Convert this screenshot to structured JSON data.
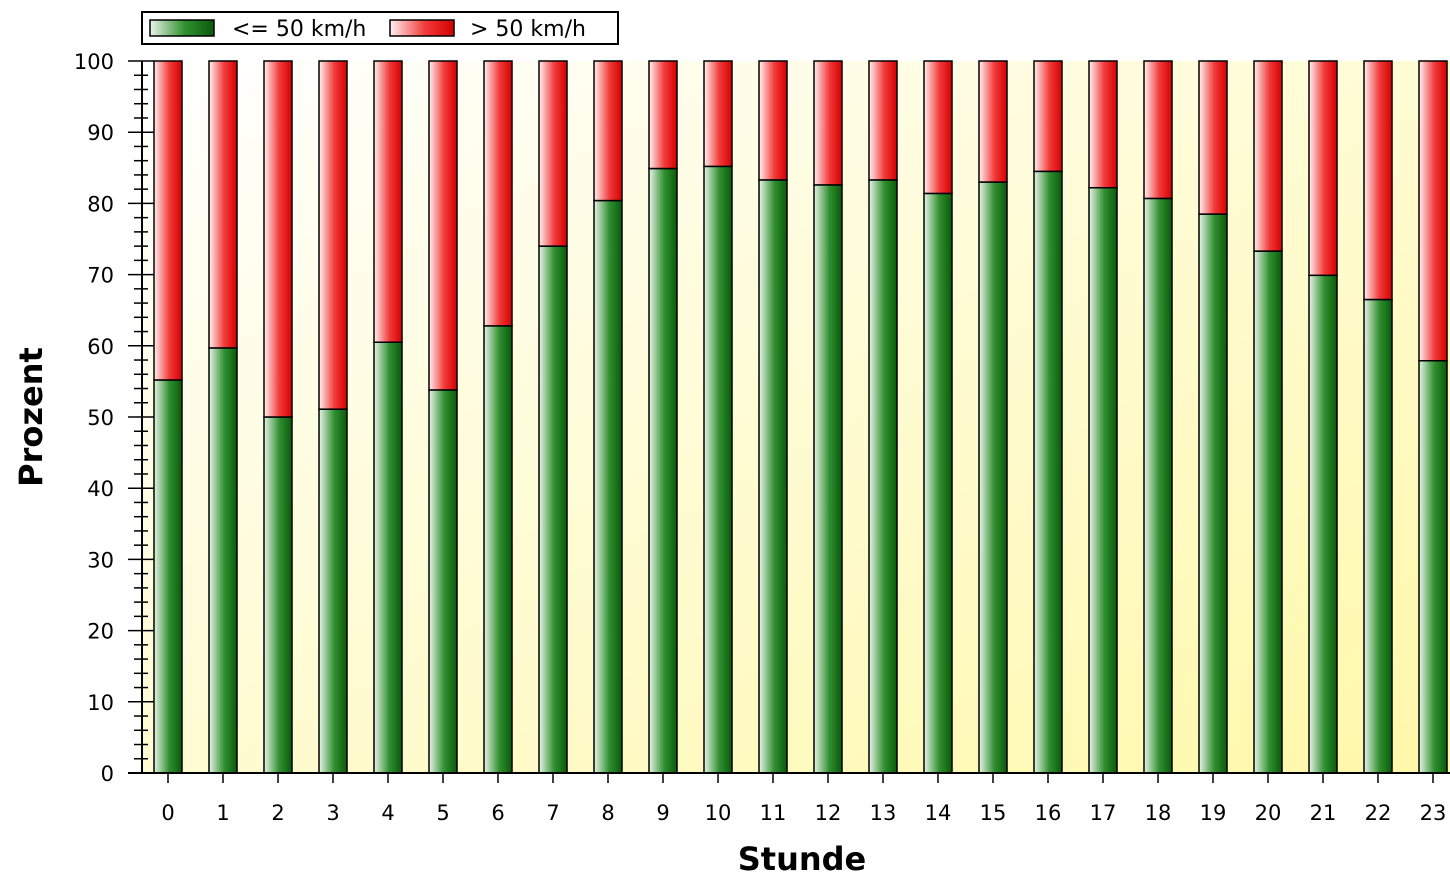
{
  "chart_data": {
    "type": "bar",
    "stacked": true,
    "percent": true,
    "categories": [
      "0",
      "1",
      "2",
      "3",
      "4",
      "5",
      "6",
      "7",
      "8",
      "9",
      "10",
      "11",
      "12",
      "13",
      "14",
      "15",
      "16",
      "17",
      "18",
      "19",
      "20",
      "21",
      "22",
      "23"
    ],
    "series": [
      {
        "name": "<= 50 km/h",
        "color": "#1a7a1a",
        "values": [
          55.2,
          59.7,
          50.0,
          51.1,
          60.5,
          53.8,
          62.8,
          74.0,
          80.4,
          84.9,
          85.2,
          83.3,
          82.6,
          83.3,
          81.4,
          83.0,
          84.5,
          82.2,
          80.7,
          78.5,
          73.3,
          69.9,
          66.5,
          57.9
        ]
      },
      {
        "name": "> 50 km/h",
        "color": "#e81010",
        "values": [
          44.8,
          40.3,
          50.0,
          48.9,
          39.5,
          46.2,
          37.2,
          26.0,
          19.6,
          15.1,
          14.8,
          16.7,
          17.4,
          16.7,
          18.6,
          17.0,
          15.5,
          17.8,
          19.3,
          21.5,
          26.7,
          30.1,
          33.5,
          42.1
        ]
      }
    ],
    "xlabel": "Stunde",
    "ylabel": "Prozent",
    "ylim": [
      0,
      100
    ],
    "yticks": [
      0,
      10,
      20,
      30,
      40,
      50,
      60,
      70,
      80,
      90,
      100
    ],
    "legend_position": "top-left",
    "background": "yellow-gradient"
  }
}
